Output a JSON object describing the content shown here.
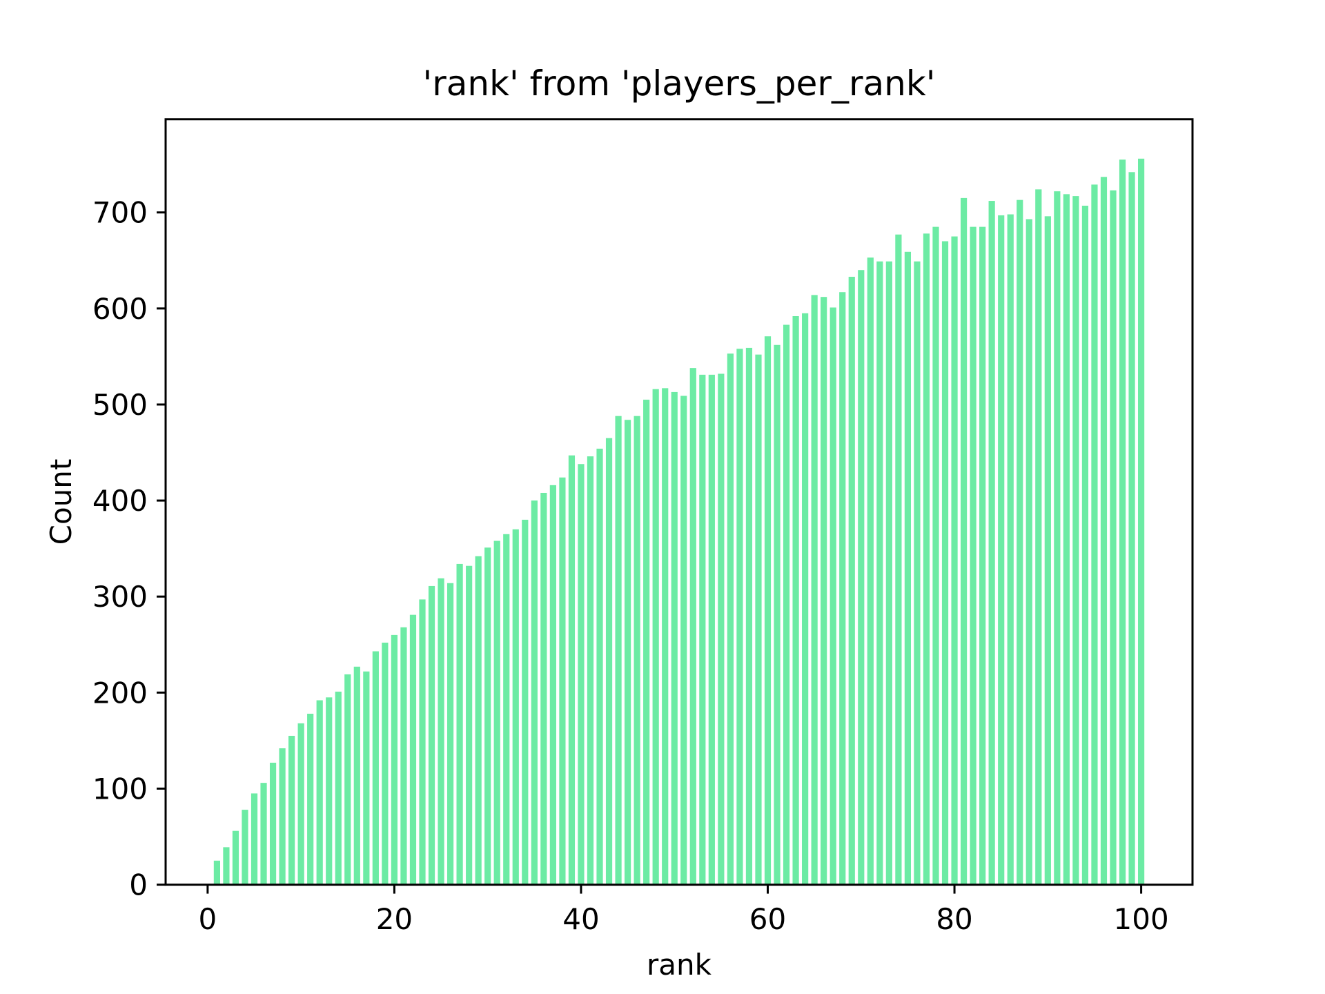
{
  "chart_data": {
    "type": "bar",
    "title": "'rank' from 'players_per_rank'",
    "xlabel": "rank",
    "ylabel": "Count",
    "x_start": 1,
    "x_label_note": "ranks 1 through 100, one bar each",
    "values": [
      25,
      39,
      56,
      78,
      95,
      106,
      127,
      142,
      155,
      168,
      178,
      192,
      195,
      201,
      219,
      227,
      222,
      243,
      252,
      260,
      268,
      281,
      297,
      311,
      319,
      314,
      334,
      332,
      342,
      351,
      358,
      365,
      370,
      380,
      400,
      408,
      416,
      424,
      447,
      438,
      446,
      454,
      465,
      488,
      484,
      488,
      505,
      516,
      517,
      513,
      509,
      538,
      531,
      531,
      532,
      553,
      558,
      559,
      552,
      571,
      562,
      583,
      592,
      595,
      614,
      612,
      601,
      617,
      633,
      640,
      653,
      649,
      649,
      677,
      659,
      649,
      678,
      685,
      670,
      675,
      715,
      685,
      685,
      712,
      697,
      698,
      713,
      693,
      724,
      696,
      722,
      719,
      717,
      707,
      729,
      737,
      723,
      755,
      742,
      756
    ],
    "x_ticks": [
      0,
      20,
      40,
      60,
      80,
      100
    ],
    "y_ticks": [
      0,
      100,
      200,
      300,
      400,
      500,
      600,
      700
    ],
    "xlim": [
      -4.5,
      105.5
    ],
    "ylim": [
      0,
      797
    ],
    "grid": false,
    "legend": null,
    "bar_color": "#6ceba4",
    "axis_color": "#000000",
    "background_color": "#ffffff",
    "bar_width_fraction": 0.68
  }
}
